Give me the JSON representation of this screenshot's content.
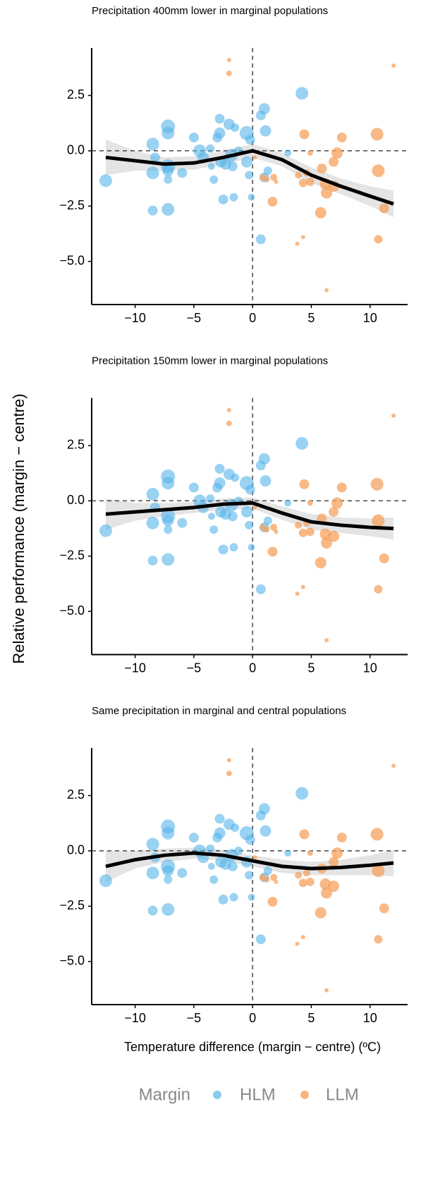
{
  "y_label": "Relative performance (margin − centre)",
  "x_label": "Temperature difference (margin − centre) (ºC)",
  "legend_title": "Margin",
  "chart_data": [
    {
      "type": "scatter",
      "title": "Precipitation 400mm lower in marginal populations",
      "xlim": [
        -13.7,
        13.2
      ],
      "ylim": [
        -6.95,
        4.65
      ],
      "xticks": [
        {
          "value": -10,
          "label": "−10"
        },
        {
          "value": -5,
          "label": "−5"
        },
        0,
        5,
        10
      ],
      "yticks": [
        {
          "value": 2.5,
          "label": "2.5"
        },
        {
          "value": 0,
          "label": "0.0"
        },
        {
          "value": -2.5,
          "label": "−2.5"
        },
        {
          "value": -5,
          "label": "−5.0"
        }
      ],
      "hline": 0,
      "vline": 0,
      "series": [
        {
          "name": "HLM",
          "color": "#56b4e9",
          "x": [
            -12.5,
            -8.5,
            -8.5,
            -8.5,
            -8.3,
            -7.2,
            -7.2,
            -7.2,
            -7.2,
            -7.2,
            -7.2,
            -6,
            -5,
            -4.5,
            -4.2,
            -3.6,
            -3.5,
            -3.3,
            -3,
            -2.8,
            -2.8,
            -2.7,
            -2.5,
            -2.3,
            -2,
            -1.8,
            -1.7,
            -1.6,
            -1.5,
            -1.2,
            -0.5,
            -0.5,
            -0.3,
            -0.2,
            -0.1,
            0.7,
            1,
            1.1,
            0.7,
            1,
            1.3,
            3,
            4.2
          ],
          "values": [
            -1.35,
            0.3,
            -1,
            -2.7,
            -0.3,
            1.1,
            0.8,
            -0.7,
            -0.9,
            -1.3,
            -2.65,
            -1,
            0.6,
            0,
            -0.3,
            0.1,
            -0.7,
            -1.3,
            0.6,
            1.45,
            0.8,
            -0.5,
            -2.2,
            -0.6,
            1.2,
            -0.2,
            -0.7,
            -2.1,
            1.05,
            0,
            0.8,
            -0.5,
            -1.1,
            0.5,
            -2.1,
            1.6,
            1.9,
            0.9,
            -4,
            -1.2,
            -0.9,
            -0.1,
            2.6
          ],
          "sizes": [
            9,
            9,
            9,
            7,
            7,
            10,
            9,
            10,
            8,
            6,
            9,
            7,
            7,
            9,
            8,
            6,
            5,
            6,
            7,
            7,
            8,
            8,
            7,
            8,
            8,
            9,
            7,
            6,
            6,
            6,
            10,
            8,
            6,
            7,
            5,
            7,
            8,
            8,
            7,
            7,
            6,
            5,
            9
          ]
        },
        {
          "name": "LLM",
          "color": "#f5a25d",
          "x": [
            -2,
            -2,
            0.2,
            0.9,
            1.2,
            2,
            1.8,
            1.7,
            3.9,
            4.3,
            4.4,
            4.6,
            4.9,
            4.9,
            3.8,
            4.3,
            5.8,
            5.9,
            6.2,
            6.3,
            6.3,
            6.9,
            6.9,
            7.2,
            7.6,
            10.6,
            10.7,
            10.7,
            11.2,
            12
          ],
          "values": [
            4.1,
            3.5,
            -0.3,
            -1.2,
            -1.3,
            -1.4,
            -1.2,
            -2.3,
            -1.1,
            -1.45,
            0.75,
            -1,
            -1.4,
            -0.1,
            -4.2,
            -3.9,
            -2.8,
            -0.8,
            -1.5,
            -1.9,
            -6.3,
            -1.6,
            -0.5,
            -0.1,
            0.6,
            0.75,
            -0.9,
            -4,
            -2.6,
            3.85
          ],
          "sizes": [
            3,
            4,
            3,
            5,
            4,
            3,
            5,
            7,
            5,
            6,
            7,
            5,
            6,
            4,
            3,
            3,
            8,
            7,
            8,
            8,
            3,
            8,
            7,
            8,
            7,
            9,
            9,
            6,
            7,
            3
          ]
        }
      ],
      "fit": {
        "x": [
          -12.5,
          -10,
          -7.5,
          -5,
          -2.5,
          0,
          2.5,
          5,
          7.5,
          10,
          12
        ],
        "values": [
          -0.3,
          -0.45,
          -0.6,
          -0.55,
          -0.3,
          0,
          -0.4,
          -1.1,
          -1.6,
          -2.05,
          -2.4
        ],
        "lower": [
          -1.1,
          -0.9,
          -0.9,
          -0.85,
          -0.6,
          -0.3,
          -0.7,
          -1.45,
          -1.95,
          -2.5,
          -3.0
        ],
        "upper": [
          0.5,
          0,
          -0.3,
          -0.25,
          0,
          0.3,
          -0.1,
          -0.75,
          -1.25,
          -1.6,
          -1.8
        ]
      }
    },
    {
      "type": "scatter",
      "title": "Precipitation 150mm lower in marginal populations",
      "xlim": [
        -13.7,
        13.2
      ],
      "ylim": [
        -6.95,
        4.65
      ],
      "xticks": [
        {
          "value": -10,
          "label": "−10"
        },
        {
          "value": -5,
          "label": "−5"
        },
        0,
        5,
        10
      ],
      "yticks": [
        {
          "value": 2.5,
          "label": "2.5"
        },
        {
          "value": 0,
          "label": "0.0"
        },
        {
          "value": -2.5,
          "label": "−2.5"
        },
        {
          "value": -5,
          "label": "−5.0"
        }
      ],
      "hline": 0,
      "vline": 0,
      "series": [
        {
          "name": "HLM",
          "color": "#56b4e9",
          "x": [
            -12.5,
            -8.5,
            -8.5,
            -8.5,
            -8.3,
            -7.2,
            -7.2,
            -7.2,
            -7.2,
            -7.2,
            -7.2,
            -6,
            -5,
            -4.5,
            -4.2,
            -3.6,
            -3.5,
            -3.3,
            -3,
            -2.8,
            -2.8,
            -2.7,
            -2.5,
            -2.3,
            -2,
            -1.8,
            -1.7,
            -1.6,
            -1.5,
            -1.2,
            -0.5,
            -0.5,
            -0.3,
            -0.2,
            -0.1,
            0.7,
            1,
            1.1,
            0.7,
            1,
            1.3,
            3,
            4.2
          ],
          "values": [
            -1.35,
            0.3,
            -1,
            -2.7,
            -0.3,
            1.1,
            0.8,
            -0.7,
            -0.9,
            -1.3,
            -2.65,
            -1,
            0.6,
            0,
            -0.3,
            0.1,
            -0.7,
            -1.3,
            0.6,
            1.45,
            0.8,
            -0.5,
            -2.2,
            -0.6,
            1.2,
            -0.2,
            -0.7,
            -2.1,
            1.05,
            0,
            0.8,
            -0.5,
            -1.1,
            0.5,
            -2.1,
            1.6,
            1.9,
            0.9,
            -4,
            -1.2,
            -0.9,
            -0.1,
            2.6
          ],
          "sizes": [
            9,
            9,
            9,
            7,
            7,
            10,
            9,
            10,
            8,
            6,
            9,
            7,
            7,
            9,
            8,
            6,
            5,
            6,
            7,
            7,
            8,
            8,
            7,
            8,
            8,
            9,
            7,
            6,
            6,
            6,
            10,
            8,
            6,
            7,
            5,
            7,
            8,
            8,
            7,
            7,
            6,
            5,
            9
          ]
        },
        {
          "name": "LLM",
          "color": "#f5a25d",
          "x": [
            -2,
            -2,
            0.2,
            0.9,
            1.2,
            2,
            1.8,
            1.7,
            3.9,
            4.3,
            4.4,
            4.6,
            4.9,
            4.9,
            3.8,
            4.3,
            5.8,
            5.9,
            6.2,
            6.3,
            6.3,
            6.9,
            6.9,
            7.2,
            7.6,
            10.6,
            10.7,
            10.7,
            11.2,
            12
          ],
          "values": [
            4.1,
            3.5,
            -0.3,
            -1.2,
            -1.3,
            -1.4,
            -1.2,
            -2.3,
            -1.1,
            -1.45,
            0.75,
            -1,
            -1.4,
            -0.1,
            -4.2,
            -3.9,
            -2.8,
            -0.8,
            -1.5,
            -1.9,
            -6.3,
            -1.6,
            -0.5,
            -0.1,
            0.6,
            0.75,
            -0.9,
            -4,
            -2.6,
            3.85
          ],
          "sizes": [
            3,
            4,
            3,
            5,
            4,
            3,
            5,
            7,
            5,
            6,
            7,
            5,
            6,
            4,
            3,
            3,
            8,
            7,
            8,
            8,
            3,
            8,
            7,
            8,
            7,
            9,
            9,
            6,
            7,
            3
          ]
        }
      ],
      "fit": {
        "x": [
          -12.5,
          -10,
          -7.5,
          -5,
          -2.5,
          0,
          2.5,
          5,
          7.5,
          10,
          12
        ],
        "values": [
          -0.6,
          -0.5,
          -0.4,
          -0.3,
          -0.15,
          -0.1,
          -0.55,
          -0.95,
          -1.1,
          -1.2,
          -1.25
        ],
        "lower": [
          -1.3,
          -0.9,
          -0.7,
          -0.55,
          -0.4,
          -0.35,
          -0.85,
          -1.3,
          -1.45,
          -1.6,
          -1.75
        ],
        "upper": [
          0.1,
          -0.1,
          -0.1,
          -0.05,
          0.1,
          0.15,
          -0.25,
          -0.6,
          -0.75,
          -0.8,
          -0.75
        ]
      }
    },
    {
      "type": "scatter",
      "title": "Same precipitation in marginal and central populations",
      "xlim": [
        -13.7,
        13.2
      ],
      "ylim": [
        -6.95,
        4.65
      ],
      "xticks": [
        {
          "value": -10,
          "label": "−10"
        },
        {
          "value": -5,
          "label": "−5"
        },
        0,
        5,
        10
      ],
      "yticks": [
        {
          "value": 2.5,
          "label": "2.5"
        },
        {
          "value": 0,
          "label": "0.0"
        },
        {
          "value": -2.5,
          "label": "−2.5"
        },
        {
          "value": -5,
          "label": "−5.0"
        }
      ],
      "hline": 0,
      "vline": 0,
      "series": [
        {
          "name": "HLM",
          "color": "#56b4e9",
          "x": [
            -12.5,
            -8.5,
            -8.5,
            -8.5,
            -8.3,
            -7.2,
            -7.2,
            -7.2,
            -7.2,
            -7.2,
            -7.2,
            -6,
            -5,
            -4.5,
            -4.2,
            -3.6,
            -3.5,
            -3.3,
            -3,
            -2.8,
            -2.8,
            -2.7,
            -2.5,
            -2.3,
            -2,
            -1.8,
            -1.7,
            -1.6,
            -1.5,
            -1.2,
            -0.5,
            -0.5,
            -0.3,
            -0.2,
            -0.1,
            0.7,
            1,
            1.1,
            0.7,
            1,
            1.3,
            3,
            4.2
          ],
          "values": [
            -1.35,
            0.3,
            -1,
            -2.7,
            -0.3,
            1.1,
            0.8,
            -0.7,
            -0.9,
            -1.3,
            -2.65,
            -1,
            0.6,
            0,
            -0.3,
            0.1,
            -0.7,
            -1.3,
            0.6,
            1.45,
            0.8,
            -0.5,
            -2.2,
            -0.6,
            1.2,
            -0.2,
            -0.7,
            -2.1,
            1.05,
            0,
            0.8,
            -0.5,
            -1.1,
            0.5,
            -2.1,
            1.6,
            1.9,
            0.9,
            -4,
            -1.2,
            -0.9,
            -0.1,
            2.6
          ],
          "sizes": [
            9,
            9,
            9,
            7,
            7,
            10,
            9,
            10,
            8,
            6,
            9,
            7,
            7,
            9,
            8,
            6,
            5,
            6,
            7,
            7,
            8,
            8,
            7,
            8,
            8,
            9,
            7,
            6,
            6,
            6,
            10,
            8,
            6,
            7,
            5,
            7,
            8,
            8,
            7,
            7,
            6,
            5,
            9
          ]
        },
        {
          "name": "LLM",
          "color": "#f5a25d",
          "x": [
            -2,
            -2,
            0.2,
            0.9,
            1.2,
            2,
            1.8,
            1.7,
            3.9,
            4.3,
            4.4,
            4.6,
            4.9,
            4.9,
            3.8,
            4.3,
            5.8,
            5.9,
            6.2,
            6.3,
            6.3,
            6.9,
            6.9,
            7.2,
            7.6,
            10.6,
            10.7,
            10.7,
            11.2,
            12
          ],
          "values": [
            4.1,
            3.5,
            -0.3,
            -1.2,
            -1.3,
            -1.4,
            -1.2,
            -2.3,
            -1.1,
            -1.45,
            0.75,
            -1,
            -1.4,
            -0.1,
            -4.2,
            -3.9,
            -2.8,
            -0.8,
            -1.5,
            -1.9,
            -6.3,
            -1.6,
            -0.5,
            -0.1,
            0.6,
            0.75,
            -0.9,
            -4,
            -2.6,
            3.85
          ],
          "sizes": [
            3,
            4,
            3,
            5,
            4,
            3,
            5,
            7,
            5,
            6,
            7,
            5,
            6,
            4,
            3,
            3,
            8,
            7,
            8,
            8,
            3,
            8,
            7,
            8,
            7,
            9,
            9,
            6,
            7,
            3
          ]
        }
      ],
      "fit": {
        "x": [
          -12.5,
          -10,
          -7.5,
          -5,
          -2.5,
          0,
          2.5,
          5,
          7.5,
          10,
          12
        ],
        "values": [
          -0.7,
          -0.4,
          -0.2,
          -0.1,
          -0.2,
          -0.45,
          -0.7,
          -0.8,
          -0.75,
          -0.65,
          -0.55
        ],
        "lower": [
          -1.4,
          -0.8,
          -0.5,
          -0.35,
          -0.45,
          -0.7,
          -1.0,
          -1.1,
          -1.1,
          -1.1,
          -1.15
        ],
        "upper": [
          0,
          0,
          0.1,
          0.15,
          0.05,
          -0.2,
          -0.4,
          -0.5,
          -0.4,
          -0.2,
          0.05
        ]
      }
    }
  ]
}
